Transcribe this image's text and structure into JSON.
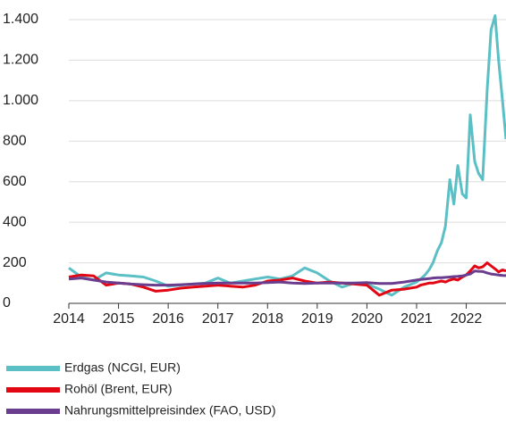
{
  "chart_data": {
    "type": "line",
    "x": [
      2014,
      2014.25,
      2014.5,
      2014.75,
      2015,
      2015.25,
      2015.5,
      2015.75,
      2016,
      2016.25,
      2016.5,
      2016.75,
      2017,
      2017.25,
      2017.5,
      2017.75,
      2018,
      2018.25,
      2018.5,
      2018.75,
      2019,
      2019.25,
      2019.5,
      2019.75,
      2020,
      2020.25,
      2020.5,
      2020.75,
      2021,
      2021.08,
      2021.17,
      2021.25,
      2021.33,
      2021.42,
      2021.5,
      2021.58,
      2021.67,
      2021.75,
      2021.83,
      2021.92,
      2022,
      2022.08,
      2022.17,
      2022.25,
      2022.33,
      2022.42,
      2022.5,
      2022.58,
      2022.65,
      2022.73,
      2022.8
    ],
    "series": [
      {
        "name": "Erdgas (NCGI, EUR)",
        "color": "#5bbfc6",
        "values": [
          175,
          130,
          115,
          150,
          140,
          135,
          130,
          110,
          85,
          90,
          95,
          100,
          125,
          100,
          110,
          120,
          130,
          120,
          135,
          175,
          150,
          110,
          80,
          100,
          95,
          70,
          40,
          80,
          105,
          120,
          140,
          165,
          200,
          260,
          300,
          380,
          610,
          490,
          680,
          540,
          520,
          930,
          700,
          640,
          610,
          1050,
          1350,
          1420,
          1200,
          1000,
          810
        ]
      },
      {
        "name": "Rohöl (Brent, EUR)",
        "color": "#e30613",
        "values": [
          130,
          140,
          135,
          90,
          100,
          95,
          80,
          60,
          65,
          75,
          80,
          85,
          90,
          85,
          80,
          90,
          110,
          115,
          125,
          110,
          100,
          105,
          100,
          95,
          90,
          40,
          65,
          70,
          80,
          90,
          95,
          100,
          100,
          105,
          110,
          105,
          115,
          120,
          115,
          130,
          140,
          160,
          185,
          175,
          180,
          200,
          185,
          170,
          155,
          165,
          160
        ]
      },
      {
        "name": "Nahrungsmittelpreisindex (FAO, USD)",
        "color": "#6b3d8e",
        "values": [
          120,
          125,
          115,
          105,
          100,
          95,
          92,
          90,
          90,
          92,
          95,
          98,
          100,
          100,
          100,
          100,
          102,
          105,
          100,
          98,
          100,
          100,
          100,
          100,
          102,
          98,
          98,
          105,
          115,
          118,
          120,
          122,
          125,
          127,
          127,
          128,
          130,
          132,
          133,
          135,
          140,
          145,
          160,
          158,
          157,
          150,
          145,
          142,
          140,
          138,
          137
        ]
      }
    ],
    "xlim": [
      2014,
      2022.8
    ],
    "xticks": [
      2014,
      2015,
      2016,
      2017,
      2018,
      2019,
      2020,
      2021,
      2022
    ],
    "ylim": [
      0,
      1400
    ],
    "yticks": [
      0,
      200,
      400,
      600,
      800,
      {
        "value": 1000,
        "label": "1.000"
      },
      {
        "value": 1200,
        "label": "1.200"
      },
      {
        "value": 1400,
        "label": "1.400"
      }
    ],
    "grid": true
  }
}
